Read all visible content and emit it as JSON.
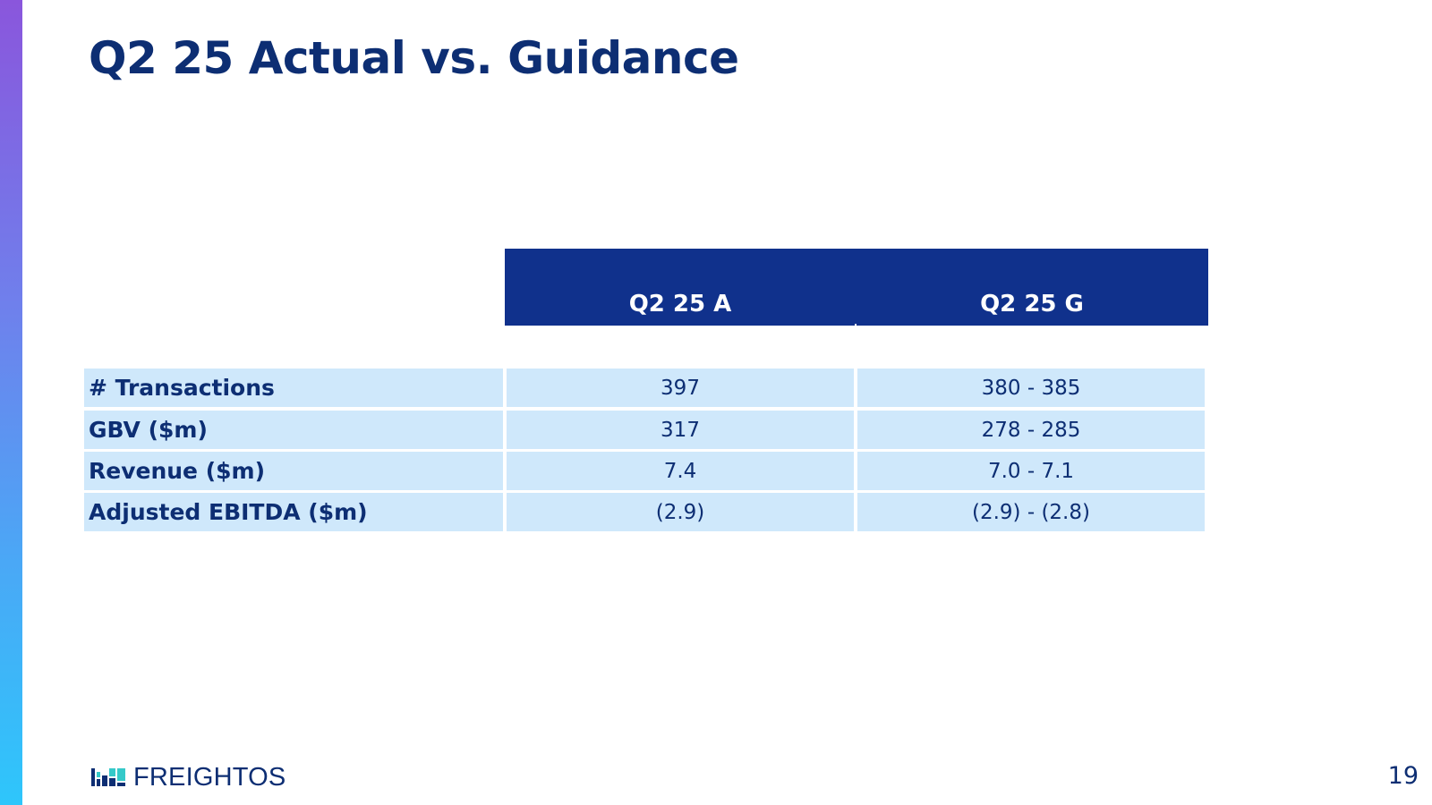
{
  "slide": {
    "title": "Q2 25 Actual vs. Guidance",
    "page_number": "19"
  },
  "table": {
    "columns": [
      "Q2 25 A",
      "Q2 25 G"
    ],
    "rows": [
      {
        "label": "# Transactions",
        "actual": "397",
        "guidance": "380 - 385"
      },
      {
        "label": "GBV ($m)",
        "actual": "317",
        "guidance": "278 - 285"
      },
      {
        "label": "Revenue ($m)",
        "actual": "7.4",
        "guidance": "7.0 - 7.1"
      },
      {
        "label": "Adjusted EBITDA ($m)",
        "actual": "(2.9)",
        "guidance": "(2.9) - (2.8)"
      }
    ]
  },
  "footer": {
    "logo_text": "FREIGHTOS",
    "logo_icon": "freightos-logo-icon"
  },
  "colors": {
    "title": "#0d2e73",
    "header_fill": "#10318c",
    "row_fill": "#cfe8fb",
    "logo_teal": "#35c9c9"
  }
}
